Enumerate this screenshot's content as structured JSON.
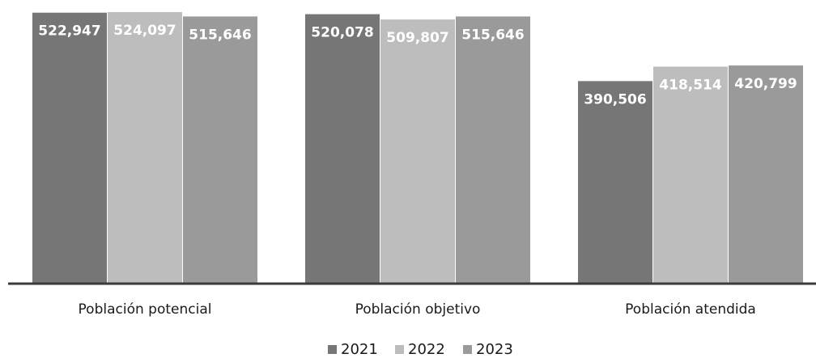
{
  "chart_data": {
    "type": "bar",
    "title": "",
    "xlabel": "",
    "ylabel": "",
    "categories": [
      "Población potencial",
      "Población objetivo",
      "Población atendida"
    ],
    "series": [
      {
        "name": "2021",
        "color": "#767676",
        "values": [
          522947,
          520078,
          390506
        ],
        "labels": [
          "522,947",
          "520,078",
          "390,506"
        ]
      },
      {
        "name": "2022",
        "color": "#bdbdbd",
        "values": [
          524097,
          509807,
          418514
        ],
        "labels": [
          "524,097",
          "509,807",
          "418,514"
        ]
      },
      {
        "name": "2023",
        "color": "#9a9a9a",
        "values": [
          515646,
          515646,
          420799
        ],
        "labels": [
          "515,646",
          "515,646",
          "420,799"
        ]
      }
    ],
    "ylim": [
      0,
      535000
    ],
    "grid": false,
    "legend_position": "bottom"
  }
}
